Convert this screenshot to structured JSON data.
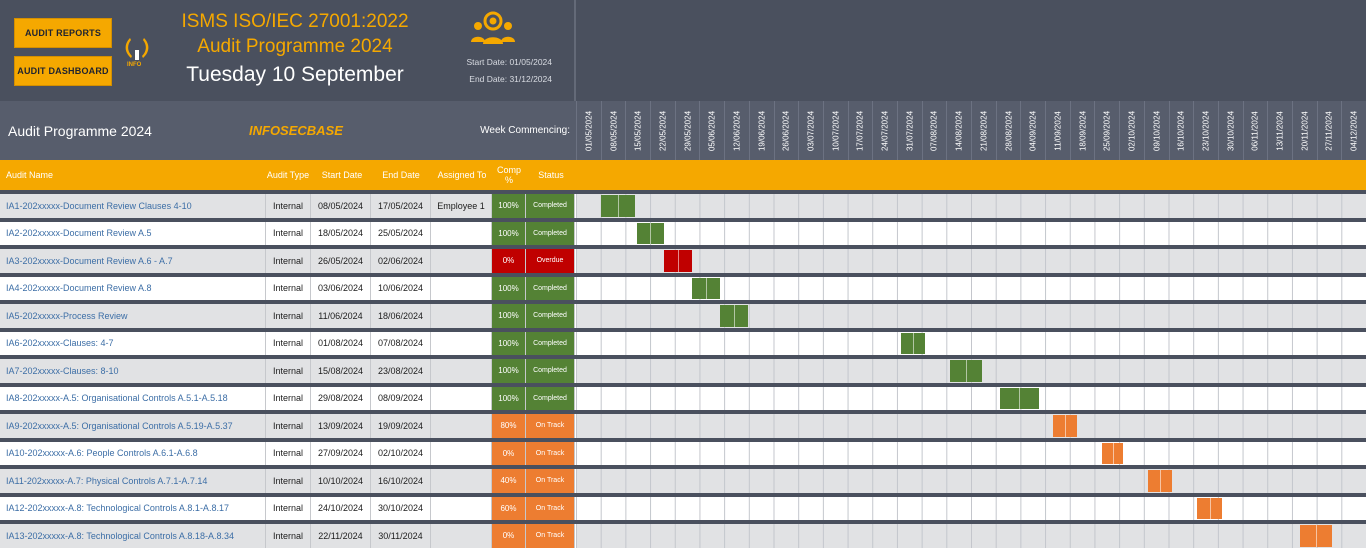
{
  "banner": {
    "reports_button": "AUDIT REPORTS",
    "dashboard_button": "AUDIT DASHBOARD",
    "logo_text": "INFO",
    "title_line1": "ISMS ISO/IEC 27001:2022",
    "title_line2": "Audit Programme 2024",
    "today": "Tuesday 10 September",
    "start_date": "Start Date: 01/05/2024",
    "end_date": "End Date: 31/12/2024"
  },
  "header": {
    "title": "Audit Programme 2024",
    "brand": "INFOSECBASE",
    "week_label": "Week Commencing:"
  },
  "weeks": [
    "01/05/2024",
    "08/05/2024",
    "15/05/2024",
    "22/05/2024",
    "29/05/2024",
    "05/06/2024",
    "12/06/2024",
    "19/06/2024",
    "26/06/2024",
    "03/07/2024",
    "10/07/2024",
    "17/07/2024",
    "24/07/2024",
    "31/07/2024",
    "07/08/2024",
    "14/08/2024",
    "21/08/2024",
    "28/08/2024",
    "04/09/2024",
    "11/09/2024",
    "18/09/2024",
    "25/09/2024",
    "02/10/2024",
    "09/10/2024",
    "16/10/2024",
    "23/10/2024",
    "30/10/2024",
    "06/11/2024",
    "13/11/2024",
    "20/11/2024",
    "27/11/2024",
    "04/12/2024"
  ],
  "columns": {
    "name": "Audit Name",
    "type": "Audit Type",
    "start": "Start Date",
    "end": "End Date",
    "assigned": "Assigned To",
    "comp": "Comp %",
    "status": "Status"
  },
  "colors": {
    "completed": "#548235",
    "overdue": "#c00000",
    "on_track": "#ed7d31"
  },
  "audits": [
    {
      "name": "IA1-202xxxxx-Document Review Clauses 4-10",
      "type": "Internal",
      "start": "08/05/2024",
      "end": "17/05/2024",
      "assigned": "Employee 1",
      "comp": "100%",
      "status": "Completed",
      "state": "completed",
      "bar_start": 1.0,
      "bar_len": 1.4
    },
    {
      "name": "IA2-202xxxxx-Document Review A.5",
      "type": "Internal",
      "start": "18/05/2024",
      "end": "25/05/2024",
      "assigned": "",
      "comp": "100%",
      "status": "Completed",
      "state": "completed",
      "bar_start": 2.45,
      "bar_len": 1.1
    },
    {
      "name": "IA3-202xxxxx-Document Review A.6 - A.7",
      "type": "Internal",
      "start": "26/05/2024",
      "end": "02/06/2024",
      "assigned": "",
      "comp": "0%",
      "status": "Overdue",
      "state": "overdue",
      "bar_start": 3.55,
      "bar_len": 1.15
    },
    {
      "name": "IA4-202xxxxx-Document Review A.8",
      "type": "Internal",
      "start": "03/06/2024",
      "end": "10/06/2024",
      "assigned": "",
      "comp": "100%",
      "status": "Completed",
      "state": "completed",
      "bar_start": 4.7,
      "bar_len": 1.15
    },
    {
      "name": "IA5-202xxxxx-Process Review",
      "type": "Internal",
      "start": "11/06/2024",
      "end": "18/06/2024",
      "assigned": "",
      "comp": "100%",
      "status": "Completed",
      "state": "completed",
      "bar_start": 5.85,
      "bar_len": 1.1
    },
    {
      "name": "IA6-202xxxxx-Clauses: 4-7",
      "type": "Internal",
      "start": "01/08/2024",
      "end": "07/08/2024",
      "assigned": "",
      "comp": "100%",
      "status": "Completed",
      "state": "completed",
      "bar_start": 13.15,
      "bar_len": 1.0
    },
    {
      "name": "IA7-202xxxxx-Clauses: 8-10",
      "type": "Internal",
      "start": "15/08/2024",
      "end": "23/08/2024",
      "assigned": "",
      "comp": "100%",
      "status": "Completed",
      "state": "completed",
      "bar_start": 15.15,
      "bar_len": 1.3
    },
    {
      "name": "IA8-202xxxxx-A.5: Organisational Controls A.5.1-A.5.18",
      "type": "Internal",
      "start": "29/08/2024",
      "end": "08/09/2024",
      "assigned": "",
      "comp": "100%",
      "status": "Completed",
      "state": "completed",
      "bar_start": 17.15,
      "bar_len": 1.6
    },
    {
      "name": "IA9-202xxxxx-A.5: Organisational Controls A.5.19-A.5.37",
      "type": "Internal",
      "start": "13/09/2024",
      "end": "19/09/2024",
      "assigned": "",
      "comp": "80%",
      "status": "On Track",
      "state": "on_track",
      "bar_start": 19.3,
      "bar_len": 1.0
    },
    {
      "name": "IA10-202xxxxx-A.6: People Controls A.6.1-A.6.8",
      "type": "Internal",
      "start": "27/09/2024",
      "end": "02/10/2024",
      "assigned": "",
      "comp": "0%",
      "status": "On Track",
      "state": "on_track",
      "bar_start": 21.3,
      "bar_len": 0.85
    },
    {
      "name": "IA11-202xxxxx-A.7: Physical Controls A.7.1-A.7.14",
      "type": "Internal",
      "start": "10/10/2024",
      "end": "16/10/2024",
      "assigned": "",
      "comp": "40%",
      "status": "On Track",
      "state": "on_track",
      "bar_start": 23.15,
      "bar_len": 1.0
    },
    {
      "name": "IA12-202xxxxx-A.8: Technological Controls A.8.1-A.8.17",
      "type": "Internal",
      "start": "24/10/2024",
      "end": "30/10/2024",
      "assigned": "",
      "comp": "60%",
      "status": "On Track",
      "state": "on_track",
      "bar_start": 25.15,
      "bar_len": 1.0
    },
    {
      "name": "IA13-202xxxxx-A.8: Technological Controls A.8.18-A.8.34",
      "type": "Internal",
      "start": "22/11/2024",
      "end": "30/11/2024",
      "assigned": "",
      "comp": "0%",
      "status": "On Track",
      "state": "on_track",
      "bar_start": 29.3,
      "bar_len": 1.3
    }
  ]
}
